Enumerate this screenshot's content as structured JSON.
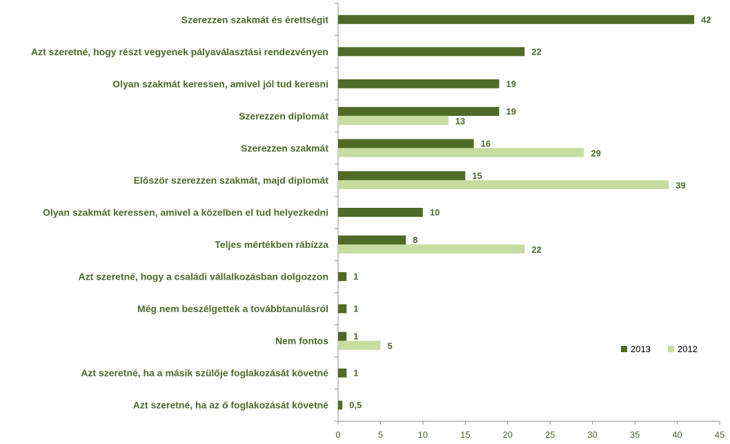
{
  "chart_data": {
    "type": "bar",
    "orientation": "horizontal",
    "categories": [
      "Szerezzen szakmát és érettségit",
      "Azt szeretné, hogy részt vegyenek pályaválasztási rendezvényen",
      "Olyan szakmát keressen, amivel jól tud keresni",
      "Szerezzen diplomát",
      "Szerezzen szakmát",
      "Először szerezzen szakmát, majd diplomát",
      "Olyan szakmát keressen, amivel a közelben el tud helyezkedni",
      "Teljes mértékben rábízza",
      "Azt szeretné, hogy a családi vállalkozásban dolgozzon",
      "Még nem beszélgettek a továbbtanulásról",
      "Nem fontos",
      "Azt szeretné, ha a másik szülője foglakozását követné",
      "Azt szeretné, ha az ő foglakozását követné"
    ],
    "series": [
      {
        "name": "2013",
        "color": "#4f6b28",
        "values": [
          42,
          22,
          19,
          19,
          16,
          15,
          10,
          8,
          1,
          1,
          1,
          1,
          0.5
        ],
        "labels": [
          "42",
          "22",
          "19",
          "19",
          "16",
          "15",
          "10",
          "8",
          "1",
          "1",
          "1",
          "1",
          "0,5"
        ]
      },
      {
        "name": "2012",
        "color": "#c5dd9f",
        "values": [
          null,
          null,
          null,
          13,
          29,
          39,
          null,
          22,
          null,
          null,
          5,
          null,
          null
        ],
        "labels": [
          "",
          "",
          "",
          "13",
          "29",
          "39",
          "",
          "22",
          "",
          "",
          "5",
          "",
          ""
        ]
      }
    ],
    "xlim": [
      0,
      45
    ],
    "xticks": [
      0,
      5,
      10,
      15,
      20,
      25,
      30,
      35,
      40,
      45
    ],
    "grid": false,
    "legend": "bottom-right"
  }
}
